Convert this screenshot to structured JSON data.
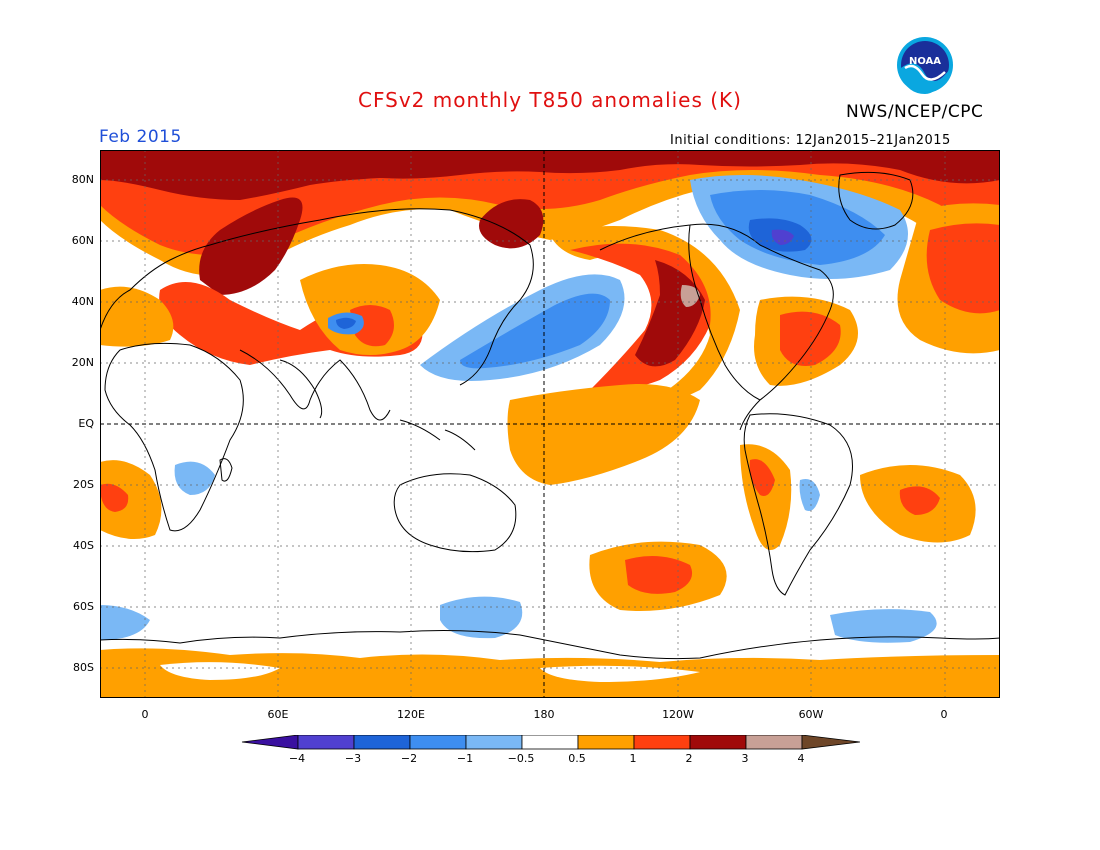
{
  "header": {
    "title": "CFSv2 monthly T850 anomalies (K)",
    "agency": "NWS/NCEP/CPC",
    "logo_text": "NOAA",
    "month": "Feb 2015",
    "initial_conditions": "Initial conditions: 12Jan2015–21Jan2015"
  },
  "colors": {
    "title": "#e01010",
    "month": "#1f4fd8",
    "frame": "#000000"
  },
  "axes": {
    "lat_labels": [
      "80N",
      "60N",
      "40N",
      "20N",
      "EQ",
      "20S",
      "40S",
      "60S",
      "80S"
    ],
    "lon_labels": [
      "0",
      "60E",
      "120E",
      "180",
      "120W",
      "60W",
      "0"
    ]
  },
  "colorbar": {
    "labels": [
      "−4",
      "−3",
      "−2",
      "−1",
      "−0.5",
      "0.5",
      "1",
      "2",
      "3",
      "4"
    ],
    "colors": [
      "#3a10a0",
      "#5040d0",
      "#1e64d8",
      "#3e8ef0",
      "#7ab8f5",
      "#ffffff",
      "#ffa000",
      "#ff4010",
      "#a00a0a",
      "#c8a096",
      "#6e4628"
    ]
  }
}
